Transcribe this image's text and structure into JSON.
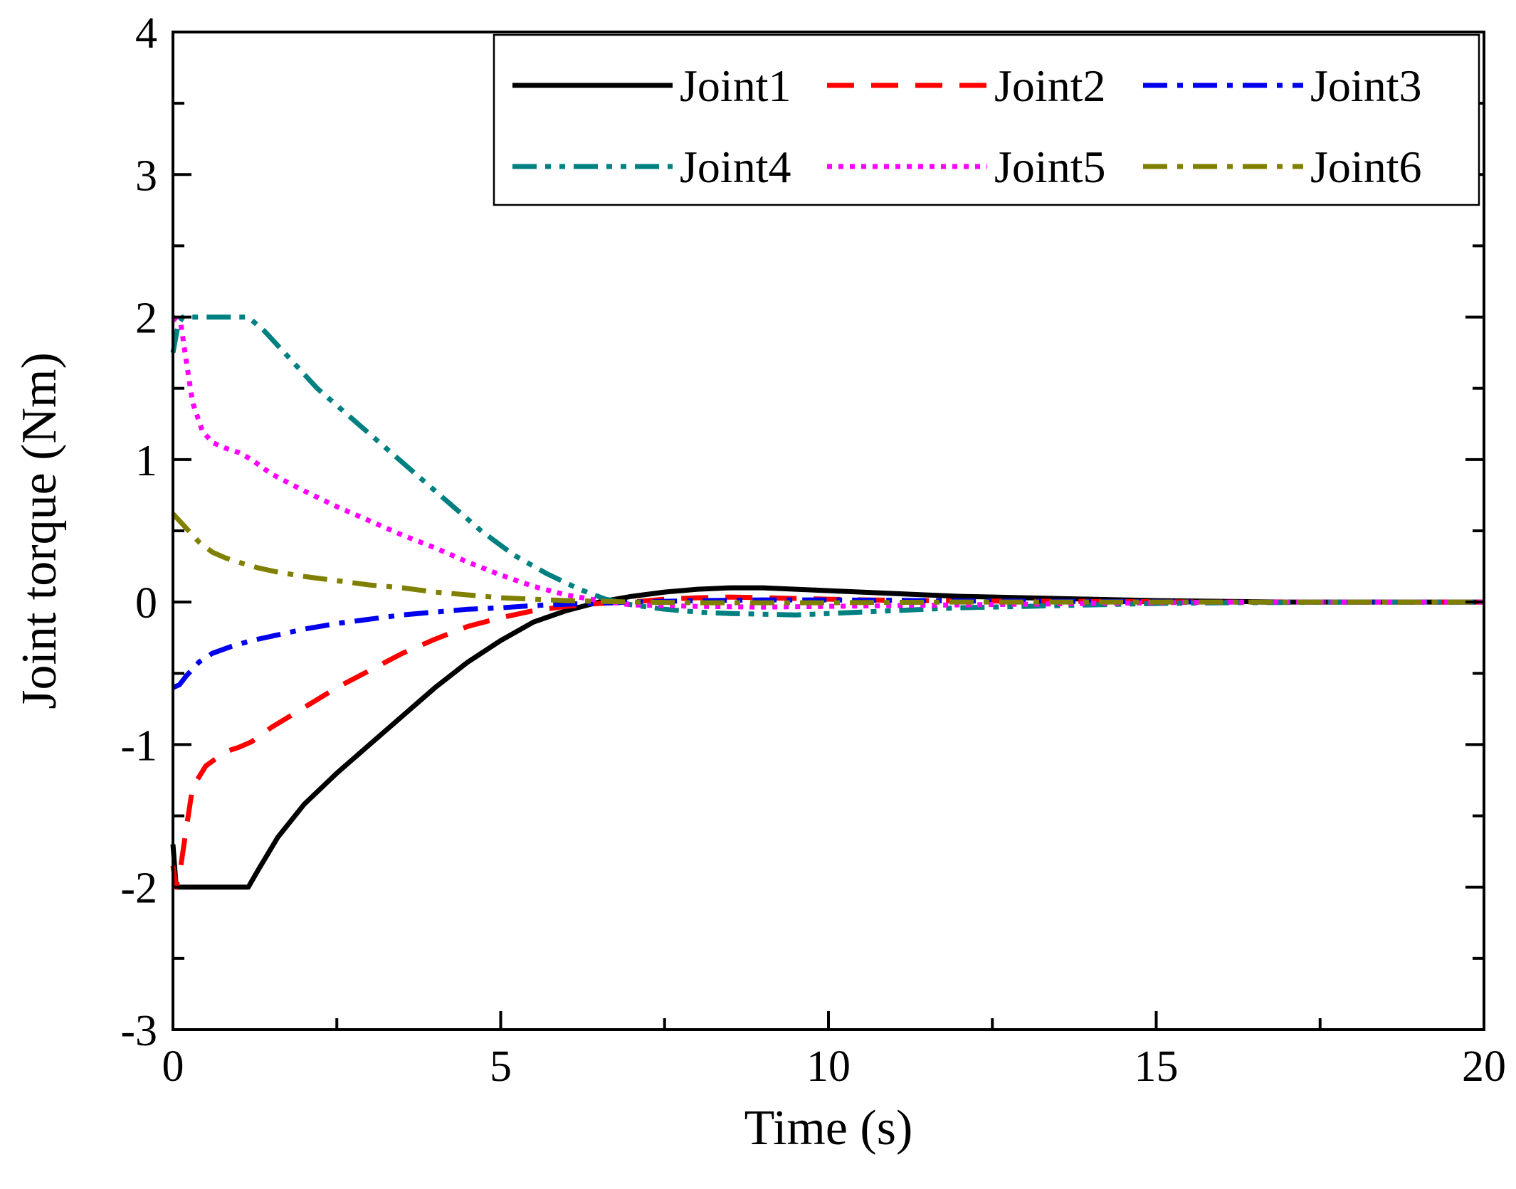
{
  "chart_data": {
    "type": "line",
    "title": "",
    "xlabel": "Time (s)",
    "ylabel": "Joint torque (Nm)",
    "xlim": [
      0,
      20
    ],
    "ylim": [
      -3,
      4
    ],
    "x_ticks": [
      0,
      5,
      10,
      15,
      20
    ],
    "y_ticks": [
      -3,
      -2,
      -1,
      0,
      1,
      2,
      3,
      4
    ],
    "x_tick_labels": [
      "0",
      "5",
      "10",
      "15",
      "20"
    ],
    "y_tick_labels": [
      "-3",
      "-2",
      "-1",
      "0",
      "1",
      "2",
      "3",
      "4"
    ],
    "grid": false,
    "legend_position": "top-right",
    "series": [
      {
        "name": "Joint1",
        "color": "#000000",
        "style": "solid",
        "x": [
          0,
          0.05,
          0.1,
          0.5,
          1.0,
          1.15,
          1.3,
          1.6,
          2.0,
          2.5,
          3.0,
          3.5,
          4.0,
          4.5,
          5.0,
          5.5,
          6.0,
          6.5,
          7.0,
          7.5,
          8.0,
          8.5,
          9.0,
          9.5,
          10.0,
          11.0,
          12.0,
          13.0,
          14.0,
          15.0,
          16.0,
          17.0,
          18.0,
          20.0
        ],
        "y": [
          -1.7,
          -2.0,
          -2.0,
          -2.0,
          -2.0,
          -2.0,
          -1.88,
          -1.65,
          -1.42,
          -1.2,
          -1.0,
          -0.8,
          -0.6,
          -0.42,
          -0.27,
          -0.14,
          -0.06,
          0.0,
          0.04,
          0.07,
          0.09,
          0.1,
          0.1,
          0.09,
          0.08,
          0.06,
          0.04,
          0.03,
          0.02,
          0.01,
          0.005,
          0.0,
          0.0,
          0.0
        ]
      },
      {
        "name": "Joint2",
        "color": "#ff0000",
        "style": "dashed",
        "x": [
          0,
          0.05,
          0.12,
          0.2,
          0.3,
          0.5,
          0.8,
          1.0,
          1.2,
          1.5,
          2.0,
          2.5,
          3.0,
          3.5,
          4.0,
          4.5,
          5.0,
          5.5,
          6.0,
          6.5,
          7.0,
          7.5,
          8.0,
          8.5,
          9.0,
          10.0,
          11.0,
          12.0,
          14.0,
          16.0,
          20.0
        ],
        "y": [
          -1.85,
          -2.0,
          -1.85,
          -1.6,
          -1.3,
          -1.15,
          -1.05,
          -1.02,
          -0.98,
          -0.88,
          -0.74,
          -0.6,
          -0.48,
          -0.36,
          -0.26,
          -0.17,
          -0.11,
          -0.06,
          -0.03,
          -0.01,
          0.0,
          0.02,
          0.03,
          0.035,
          0.03,
          0.02,
          0.012,
          0.008,
          0.004,
          0.0,
          0.0
        ]
      },
      {
        "name": "Joint3",
        "color": "#0000ee",
        "style": "dashdot",
        "x": [
          0,
          0.1,
          0.2,
          0.4,
          0.6,
          0.9,
          1.2,
          1.6,
          2.0,
          2.5,
          3.0,
          3.5,
          4.0,
          4.5,
          5.0,
          5.5,
          6.0,
          6.5,
          7.0,
          8.0,
          9.0,
          10.0,
          11.0,
          12.0,
          14.0,
          16.0,
          20.0
        ],
        "y": [
          -0.6,
          -0.58,
          -0.52,
          -0.42,
          -0.36,
          -0.31,
          -0.27,
          -0.23,
          -0.19,
          -0.15,
          -0.12,
          -0.09,
          -0.07,
          -0.05,
          -0.04,
          -0.025,
          -0.015,
          -0.008,
          0.0,
          0.01,
          0.015,
          0.015,
          0.012,
          0.008,
          0.004,
          0.0,
          0.0
        ]
      },
      {
        "name": "Joint4",
        "color": "#008080",
        "style": "dashdotdot",
        "x": [
          0,
          0.08,
          0.15,
          0.3,
          0.6,
          1.0,
          1.15,
          1.4,
          1.8,
          2.2,
          2.7,
          3.2,
          3.7,
          4.2,
          4.7,
          5.2,
          5.7,
          6.2,
          6.6,
          7.0,
          7.5,
          8.0,
          8.5,
          9.0,
          9.5,
          10.0,
          10.5,
          11.0,
          12.0,
          13.0,
          14.0,
          15.0,
          16.0,
          18.0,
          20.0
        ],
        "y": [
          1.75,
          1.95,
          2.0,
          2.0,
          2.0,
          2.0,
          2.0,
          1.9,
          1.7,
          1.5,
          1.3,
          1.1,
          0.9,
          0.7,
          0.5,
          0.33,
          0.2,
          0.09,
          0.02,
          -0.02,
          -0.05,
          -0.07,
          -0.08,
          -0.085,
          -0.09,
          -0.08,
          -0.07,
          -0.06,
          -0.04,
          -0.03,
          -0.02,
          -0.01,
          -0.005,
          0.0,
          0.0
        ]
      },
      {
        "name": "Joint5",
        "color": "#ff00ff",
        "style": "dotted",
        "x": [
          0,
          0.12,
          0.2,
          0.3,
          0.45,
          0.6,
          0.8,
          1.0,
          1.2,
          1.5,
          2.0,
          2.5,
          3.0,
          3.5,
          4.0,
          4.5,
          5.0,
          5.5,
          6.0,
          6.5,
          7.0,
          8.0,
          9.0,
          10.0,
          11.0,
          12.0,
          13.0,
          14.0,
          15.0,
          16.0,
          18.0,
          20.0
        ],
        "y": [
          2.0,
          1.95,
          1.7,
          1.4,
          1.2,
          1.12,
          1.08,
          1.05,
          1.0,
          0.9,
          0.78,
          0.67,
          0.57,
          0.47,
          0.38,
          0.28,
          0.19,
          0.11,
          0.05,
          0.01,
          -0.02,
          -0.03,
          -0.035,
          -0.03,
          -0.025,
          -0.02,
          -0.015,
          -0.01,
          -0.005,
          0.0,
          0.0,
          0.0
        ]
      },
      {
        "name": "Joint6",
        "color": "#808000",
        "style": "dashdot",
        "x": [
          0,
          0.2,
          0.4,
          0.6,
          0.8,
          1.0,
          1.3,
          1.6,
          2.0,
          2.5,
          3.0,
          3.5,
          4.0,
          4.5,
          5.0,
          5.5,
          6.0,
          6.5,
          7.0,
          8.0,
          9.0,
          10.0,
          12.0,
          14.0,
          16.0,
          20.0
        ],
        "y": [
          0.62,
          0.52,
          0.42,
          0.35,
          0.31,
          0.28,
          0.24,
          0.21,
          0.18,
          0.15,
          0.12,
          0.1,
          0.07,
          0.05,
          0.03,
          0.02,
          0.01,
          0.005,
          0.0,
          -0.005,
          -0.005,
          -0.005,
          0.0,
          0.0,
          0.0,
          0.0
        ]
      }
    ]
  }
}
